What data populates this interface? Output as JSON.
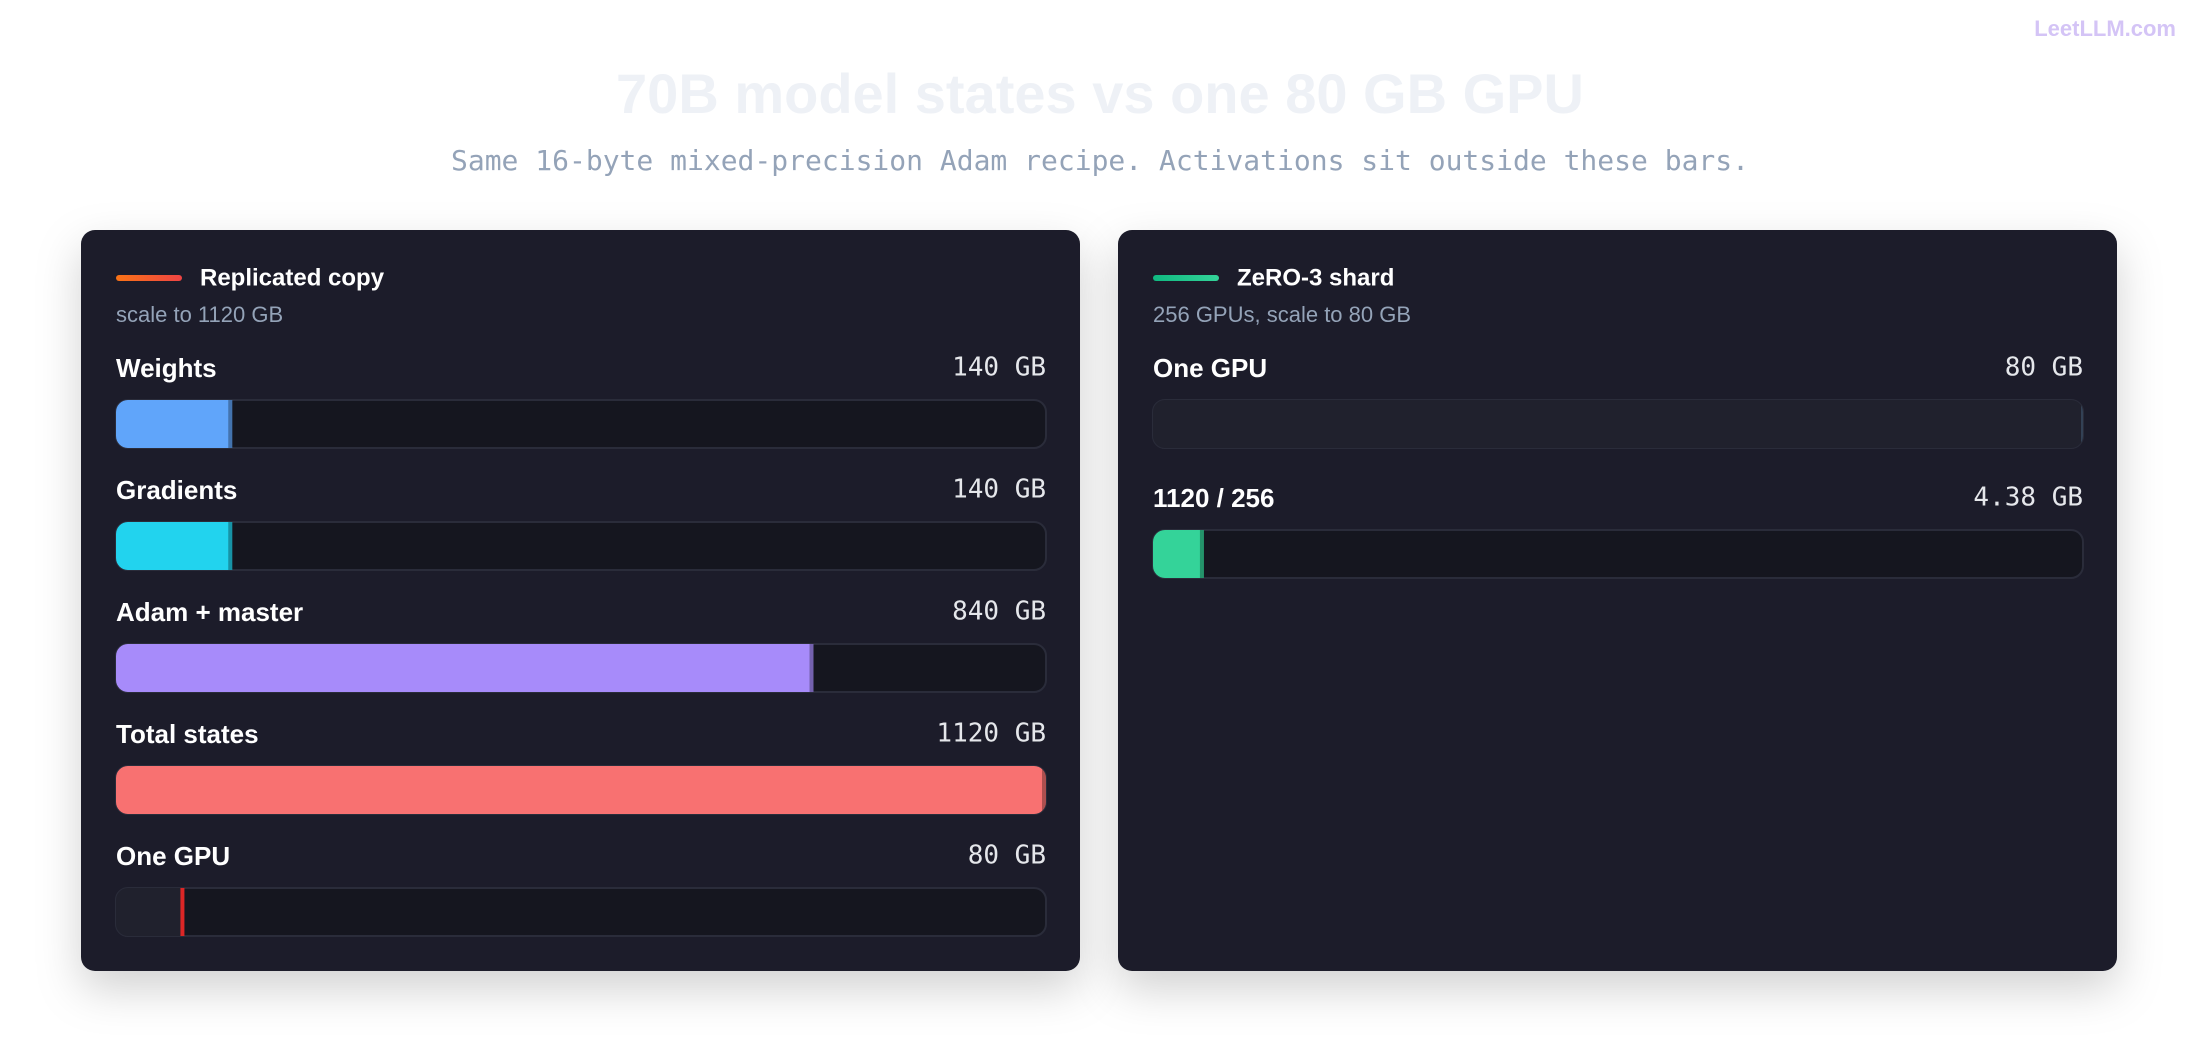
{
  "brand": "LeetLLM.com",
  "header": {
    "title": "70B model states vs one 80 GB GPU",
    "subtitle": "Same 16-byte mixed-precision Adam recipe. Activations sit outside these bars."
  },
  "chart_data": [
    {
      "type": "hbar",
      "title": "Replicated copy",
      "subtitle": "scale to 1120 GB",
      "accent": [
        "#f97316",
        "#ef4444"
      ],
      "categories": [
        "Weights",
        "Gradients",
        "Adam + master",
        "Total states",
        "One GPU"
      ],
      "values": [
        140,
        140,
        840,
        1120,
        80
      ],
      "value_labels": [
        "140 GB",
        "140 GB",
        "840 GB",
        "1120 GB",
        "80 GB"
      ],
      "colors": [
        "#60a5fa",
        "#22d3ee",
        "#a78bfa",
        "#f87171",
        "#dc2626"
      ],
      "styles": [
        "fill",
        "fill",
        "fill",
        "fill",
        "marker"
      ],
      "xlim": [
        0,
        1120
      ]
    },
    {
      "type": "hbar",
      "title": "ZeRO-3 shard",
      "subtitle": "256 GPUs, scale to 80 GB",
      "accent": [
        "#10b981",
        "#34d399"
      ],
      "categories": [
        "One GPU",
        "1120 / 256"
      ],
      "values": [
        80,
        4.38
      ],
      "value_labels": [
        "80 GB",
        "4.38 GB"
      ],
      "colors": [
        "#334155",
        "#34d399"
      ],
      "styles": [
        "marker",
        "fill"
      ],
      "xlim": [
        0,
        80
      ]
    }
  ]
}
